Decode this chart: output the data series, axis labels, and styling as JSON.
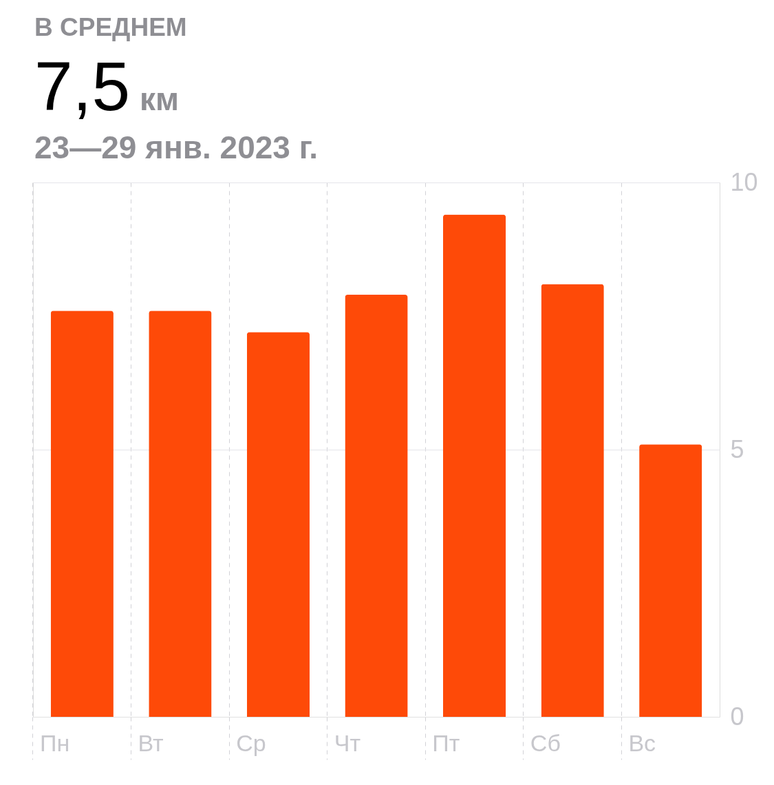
{
  "chart_data": {
    "type": "bar",
    "title": "В СРЕДНЕМ",
    "subtitle": "23—29 янв. 2023 г.",
    "annotations": [
      "7,5",
      "км"
    ],
    "categories": [
      "Пн",
      "Вт",
      "Ср",
      "Чт",
      "Пт",
      "Сб",
      "Вс"
    ],
    "values": [
      7.6,
      7.6,
      7.2,
      7.9,
      9.4,
      8.1,
      5.1
    ],
    "color": "#fe4a08",
    "ylim": [
      0,
      10
    ],
    "yticks": [
      0,
      5,
      10
    ],
    "grid": true
  }
}
